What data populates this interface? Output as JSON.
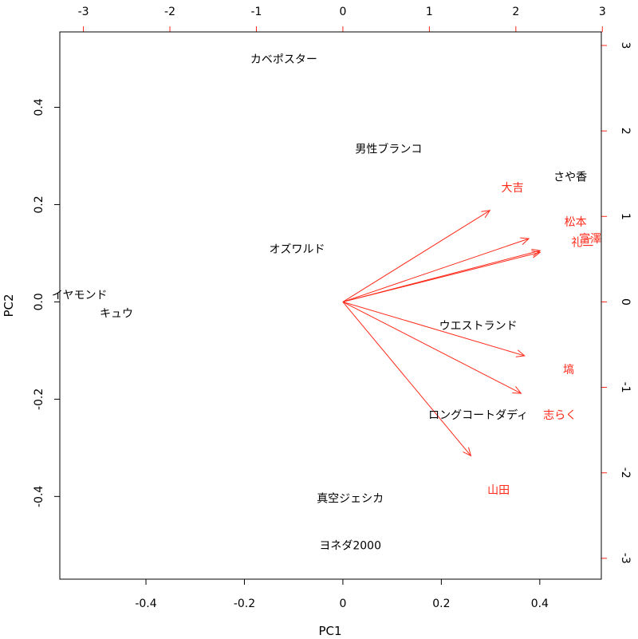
{
  "chart_data": {
    "type": "scatter",
    "subtype": "biplot",
    "title": "",
    "xlabel": "PC1",
    "ylabel": "PC2",
    "xlim": [
      -0.575,
      0.525
    ],
    "ylim": [
      -0.57,
      0.555
    ],
    "x_ticks": [
      -0.4,
      -0.2,
      0,
      0.2,
      0.4
    ],
    "y_ticks": [
      -0.4,
      -0.2,
      0,
      0.2,
      0.4
    ],
    "x_tick_labels": [
      "-0.4",
      "-0.2",
      "0",
      "0.2",
      "0.4"
    ],
    "y_tick_labels": [
      "-0.4",
      "-0.2",
      "0.0",
      "0.2",
      "0.4"
    ],
    "secondary_x_ticks": [
      -3,
      -2,
      -1,
      0,
      1,
      2,
      3
    ],
    "secondary_x_tick_labels": [
      "-3",
      "-2",
      "-1",
      "0",
      "1",
      "2",
      "3"
    ],
    "secondary_y_ticks": [
      -3,
      -2,
      -1,
      0,
      1,
      2,
      3
    ],
    "secondary_y_tick_labels": [
      "-3",
      "-2",
      "-1",
      "0",
      "1",
      "2",
      "3"
    ],
    "secondary_scale": 0.1757,
    "grid": false,
    "legend": "none",
    "colors": {
      "observations": "#000000",
      "loadings": "#ff2a1a",
      "axes": "#000000"
    },
    "observations": [
      {
        "label": "カベポスター",
        "x": -0.12,
        "y": 0.498
      },
      {
        "label": "男性ブランコ",
        "x": 0.093,
        "y": 0.313
      },
      {
        "label": "さや香",
        "x": 0.462,
        "y": 0.256
      },
      {
        "label": "オズワルド",
        "x": -0.093,
        "y": 0.107
      },
      {
        "label": "イヤモンド",
        "x": -0.535,
        "y": 0.013
      },
      {
        "label": "キュウ",
        "x": -0.46,
        "y": -0.025
      },
      {
        "label": "ウエストランド",
        "x": 0.275,
        "y": -0.05
      },
      {
        "label": "ロングコートダディ",
        "x": 0.275,
        "y": -0.234
      },
      {
        "label": "真空ジェシカ",
        "x": 0.015,
        "y": -0.405
      },
      {
        "label": "ヨネダ2000",
        "x": 0.015,
        "y": -0.502
      }
    ],
    "loadings": [
      {
        "label": "大吉",
        "x": 1.7,
        "y": 1.07,
        "label_x": 1.96,
        "label_y": 1.33
      },
      {
        "label": "松本",
        "x": 2.15,
        "y": 0.74,
        "label_x": 2.69,
        "label_y": 0.93
      },
      {
        "label": "富澤",
        "x": 2.28,
        "y": 0.6,
        "label_x": 2.86,
        "label_y": 0.73
      },
      {
        "label": "礼二",
        "x": 2.28,
        "y": 0.58,
        "label_x": 2.77,
        "label_y": 0.69
      },
      {
        "label": "塙",
        "x": 2.1,
        "y": -0.63,
        "label_x": 2.61,
        "label_y": -0.8
      },
      {
        "label": "志らく",
        "x": 2.06,
        "y": -1.07,
        "label_x": 2.51,
        "label_y": -1.33
      },
      {
        "label": "山田",
        "x": 1.48,
        "y": -1.8,
        "label_x": 1.8,
        "label_y": -2.21
      }
    ]
  }
}
